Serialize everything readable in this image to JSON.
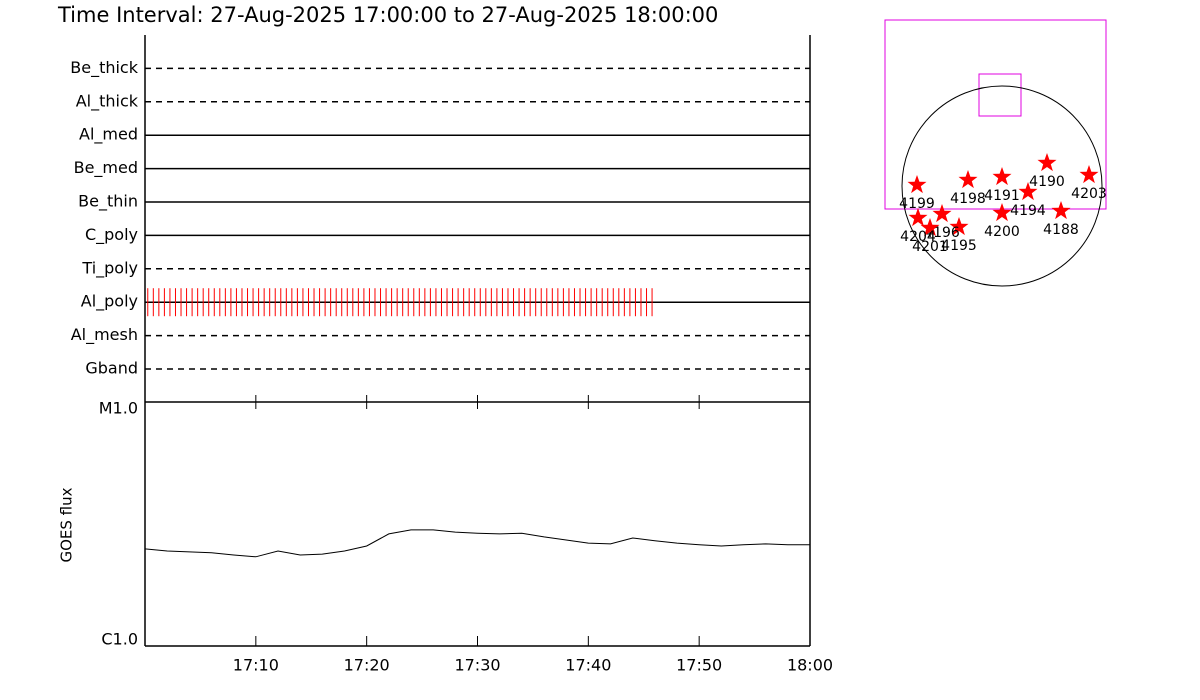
{
  "chart_data": [
    {
      "type": "timeline",
      "title": "Time Interval: 27-Aug-2025 17:00:00 to 27-Aug-2025 18:00:00",
      "rows": [
        {
          "name": "Be_thick",
          "style": "dashed"
        },
        {
          "name": "Al_thick",
          "style": "dashed"
        },
        {
          "name": "Al_med",
          "style": "solid"
        },
        {
          "name": "Be_med",
          "style": "solid"
        },
        {
          "name": "Be_thin",
          "style": "solid"
        },
        {
          "name": "C_poly",
          "style": "solid"
        },
        {
          "name": "Ti_poly",
          "style": "dashed"
        },
        {
          "name": "Al_poly",
          "style": "solid"
        },
        {
          "name": "Al_mesh",
          "style": "dashed"
        },
        {
          "name": "Gband",
          "style": "dashed"
        }
      ],
      "series": [
        {
          "row": 7,
          "color": "#ff0000",
          "x": [
            0.25,
            0.75,
            1.25,
            1.75,
            2.25,
            2.75,
            3.25,
            3.75,
            4.25,
            4.75,
            5.25,
            5.75,
            6.25,
            6.75,
            7.25,
            7.75,
            8.25,
            8.75,
            9.25,
            9.75,
            10.25,
            10.75,
            11.25,
            11.75,
            12.25,
            12.75,
            13.25,
            13.75,
            14.25,
            14.75,
            15.25,
            15.75,
            16.25,
            16.75,
            17.25,
            17.75,
            18.25,
            18.75,
            19.25,
            19.75,
            20.25,
            20.75,
            21.25,
            21.75,
            22.25,
            22.75,
            23.25,
            23.75,
            24.25,
            24.75,
            25.25,
            25.75,
            26.25,
            26.75,
            27.25,
            27.75,
            28.25,
            28.75,
            29.25,
            29.75,
            30.25,
            30.75,
            31.25,
            31.75,
            32.25,
            32.75,
            33.25,
            33.75,
            34.25,
            34.75,
            35.25,
            35.75,
            36.25,
            36.75,
            37.25,
            37.75,
            38.25,
            38.75,
            39.25,
            39.75,
            40.25,
            40.75,
            41.25,
            41.75,
            42.25,
            42.75,
            43.25,
            43.75,
            44.25,
            44.75,
            45.25,
            45.75
          ]
        }
      ],
      "xlim": [
        0,
        60
      ]
    },
    {
      "type": "line",
      "ylabel": "GOES flux",
      "x": [
        0,
        2,
        4,
        6,
        8,
        10,
        12,
        14,
        16,
        18,
        20,
        22,
        24,
        26,
        28,
        30,
        32,
        34,
        36,
        38,
        40,
        42,
        44,
        46,
        48,
        50,
        52,
        54,
        56,
        58,
        60
      ],
      "values": [
        2.5e-06,
        2.45e-06,
        2.43e-06,
        2.41e-06,
        2.36e-06,
        2.32e-06,
        2.45e-06,
        2.36e-06,
        2.38e-06,
        2.45e-06,
        2.57e-06,
        2.88e-06,
        2.99e-06,
        2.99e-06,
        2.93e-06,
        2.9e-06,
        2.88e-06,
        2.9e-06,
        2.8e-06,
        2.72e-06,
        2.64e-06,
        2.62e-06,
        2.77e-06,
        2.7e-06,
        2.64e-06,
        2.6e-06,
        2.57e-06,
        2.6e-06,
        2.62e-06,
        2.6e-06,
        2.6e-06
      ],
      "color": "#000000",
      "xlim": [
        0,
        60
      ],
      "xticks": [
        {
          "value": 10,
          "label": "17:10"
        },
        {
          "value": 20,
          "label": "17:20"
        },
        {
          "value": 30,
          "label": "17:30"
        },
        {
          "value": 40,
          "label": "17:40"
        },
        {
          "value": 50,
          "label": "17:50"
        },
        {
          "value": 60,
          "label": "18:00"
        }
      ],
      "ylim": [
        1e-06,
        1e-05
      ],
      "yticks": [
        {
          "value": 1e-06,
          "label": "C1.0"
        },
        {
          "value": 1e-05,
          "label": "M1.0"
        }
      ],
      "log_y": true
    },
    {
      "type": "scatter",
      "marker": "star",
      "color": "#ff0000",
      "points": [
        {
          "label": "4199",
          "x": -0.85,
          "y": 0.01
        },
        {
          "label": "4198",
          "x": -0.34,
          "y": 0.06
        },
        {
          "label": "4191",
          "x": 0.0,
          "y": 0.09
        },
        {
          "label": "4190",
          "x": 0.45,
          "y": 0.23
        },
        {
          "label": "4203",
          "x": 0.87,
          "y": 0.11
        },
        {
          "label": "4194",
          "x": 0.26,
          "y": -0.06
        },
        {
          "label": "4188",
          "x": 0.59,
          "y": -0.25
        },
        {
          "label": "4200",
          "x": 0.0,
          "y": -0.27
        },
        {
          "label": "4195",
          "x": -0.43,
          "y": -0.41
        },
        {
          "label": "4196",
          "x": -0.6,
          "y": -0.28
        },
        {
          "label": "4201",
          "x": -0.72,
          "y": -0.42
        },
        {
          "label": "4204",
          "x": -0.84,
          "y": -0.32
        }
      ]
    }
  ]
}
